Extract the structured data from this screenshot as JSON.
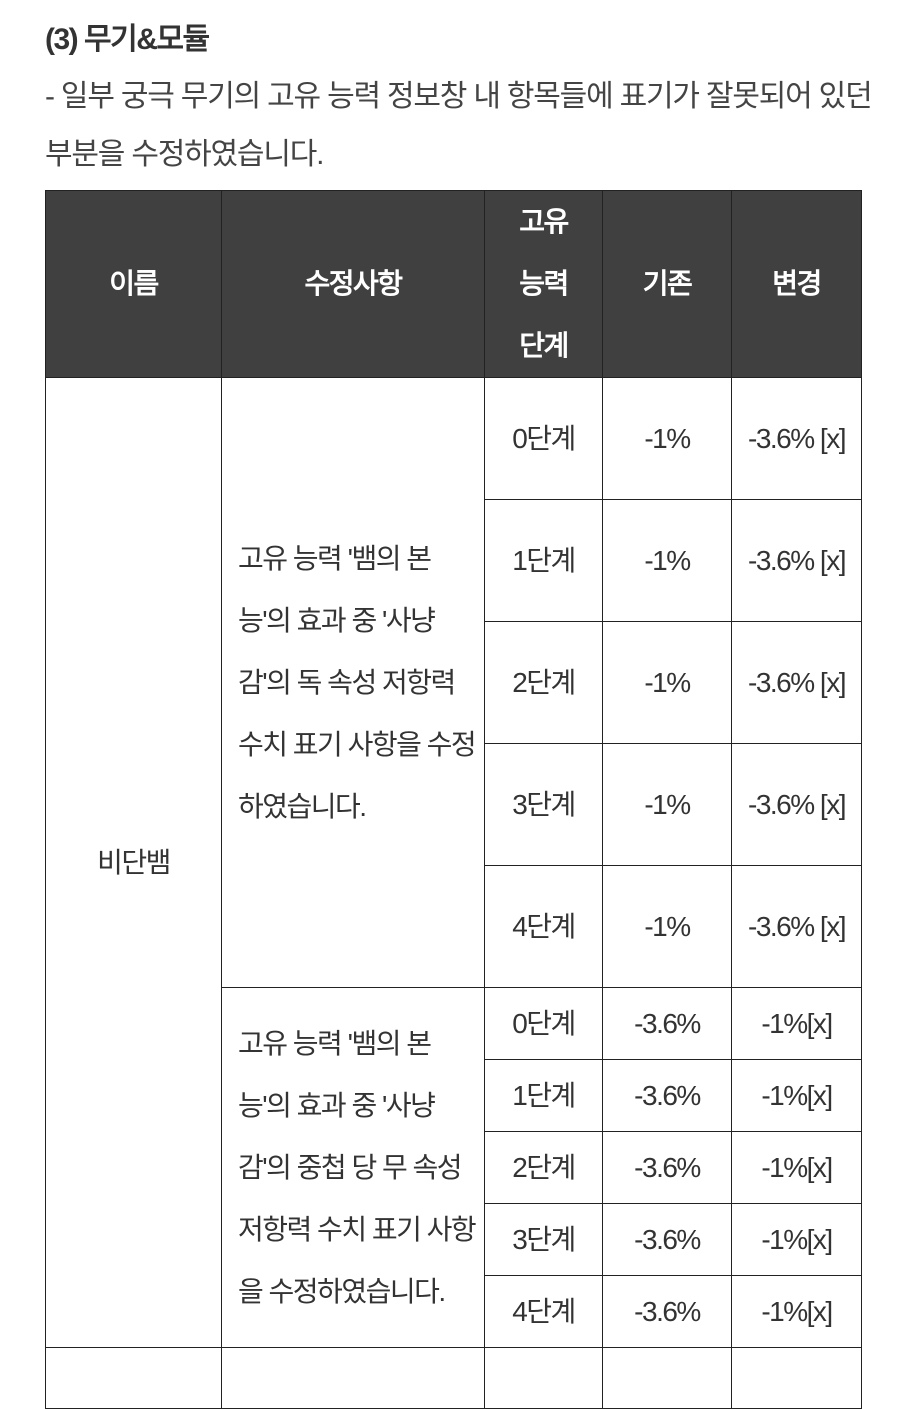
{
  "section_title": "(3) 무기&모듈",
  "description": "- 일부 궁극 무기의 고유 능력 정보창 내 항목들에 표기가 잘못되어 있던 부분을 수정하였습니다.",
  "table": {
    "headers": [
      "이름",
      "수정사항",
      "고유 능력 단계",
      "기존",
      "변경"
    ],
    "header_bg": "#404040",
    "name": "비단뱀",
    "groups": [
      {
        "change": "고유 능력 '뱀의 본능'의 효과 중 '사냥감'의 독 속성 저항력 수치 표기 사항을 수정하였습니다.",
        "rows": [
          {
            "stage": "0단계",
            "before": "-1%",
            "after": "-3.6% [x]"
          },
          {
            "stage": "1단계",
            "before": "-1%",
            "after": "-3.6% [x]"
          },
          {
            "stage": "2단계",
            "before": "-1%",
            "after": "-3.6% [x]"
          },
          {
            "stage": "3단계",
            "before": "-1%",
            "after": "-3.6% [x]"
          },
          {
            "stage": "4단계",
            "before": "-1%",
            "after": "-3.6% [x]"
          }
        ]
      },
      {
        "change": "고유 능력 '뱀의 본능'의 효과 중 '사냥감'의 중첩 당 무 속성 저항력 수치 표기 사항을 수정하였습니다.",
        "rows": [
          {
            "stage": "0단계",
            "before": "-3.6%",
            "after": "-1%[x]"
          },
          {
            "stage": "1단계",
            "before": "-3.6%",
            "after": "-1%[x]"
          },
          {
            "stage": "2단계",
            "before": "-3.6%",
            "after": "-1%[x]"
          },
          {
            "stage": "3단계",
            "before": "-3.6%",
            "after": "-1%[x]"
          },
          {
            "stage": "4단계",
            "before": "-3.6%",
            "after": "-1%[x]"
          }
        ]
      }
    ]
  }
}
